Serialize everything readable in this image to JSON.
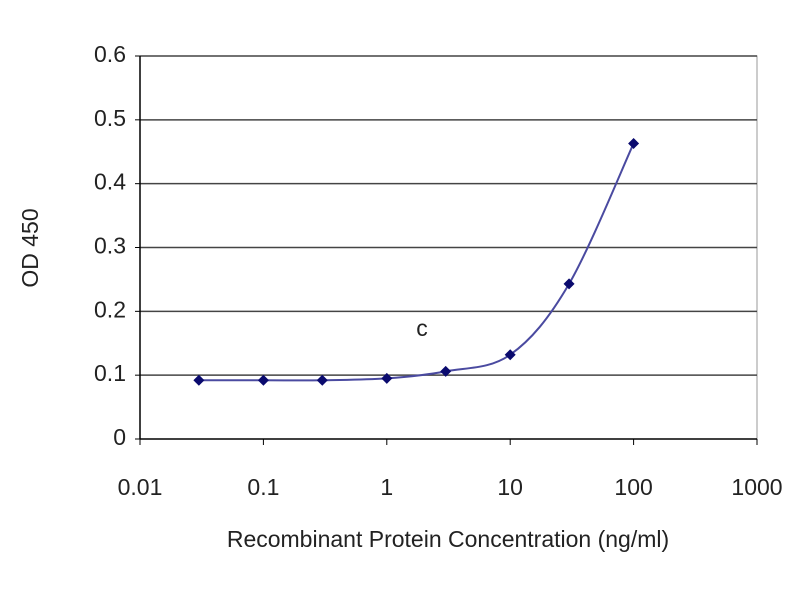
{
  "chart_data": {
    "type": "scatter",
    "x_label": "Recombinant Protein Concentration (ng/ml)",
    "y_label": "OD 450",
    "annotations": [
      "c"
    ],
    "x": [
      0.03,
      0.1,
      0.3,
      1,
      3,
      10,
      30,
      100
    ],
    "values": [
      0.092,
      0.092,
      0.092,
      0.095,
      0.106,
      0.132,
      0.243,
      0.463
    ],
    "color": "#0a0a6e",
    "line_color": "#4a4aa0",
    "xscale": "log",
    "xlim": [
      0.01,
      1000
    ],
    "xticks": [
      0.01,
      0.1,
      1,
      10,
      100,
      1000
    ],
    "ylim": [
      0,
      0.6
    ],
    "yticks": [
      0,
      0.1,
      0.2,
      0.3,
      0.4,
      0.5,
      0.6
    ],
    "grid": true
  }
}
